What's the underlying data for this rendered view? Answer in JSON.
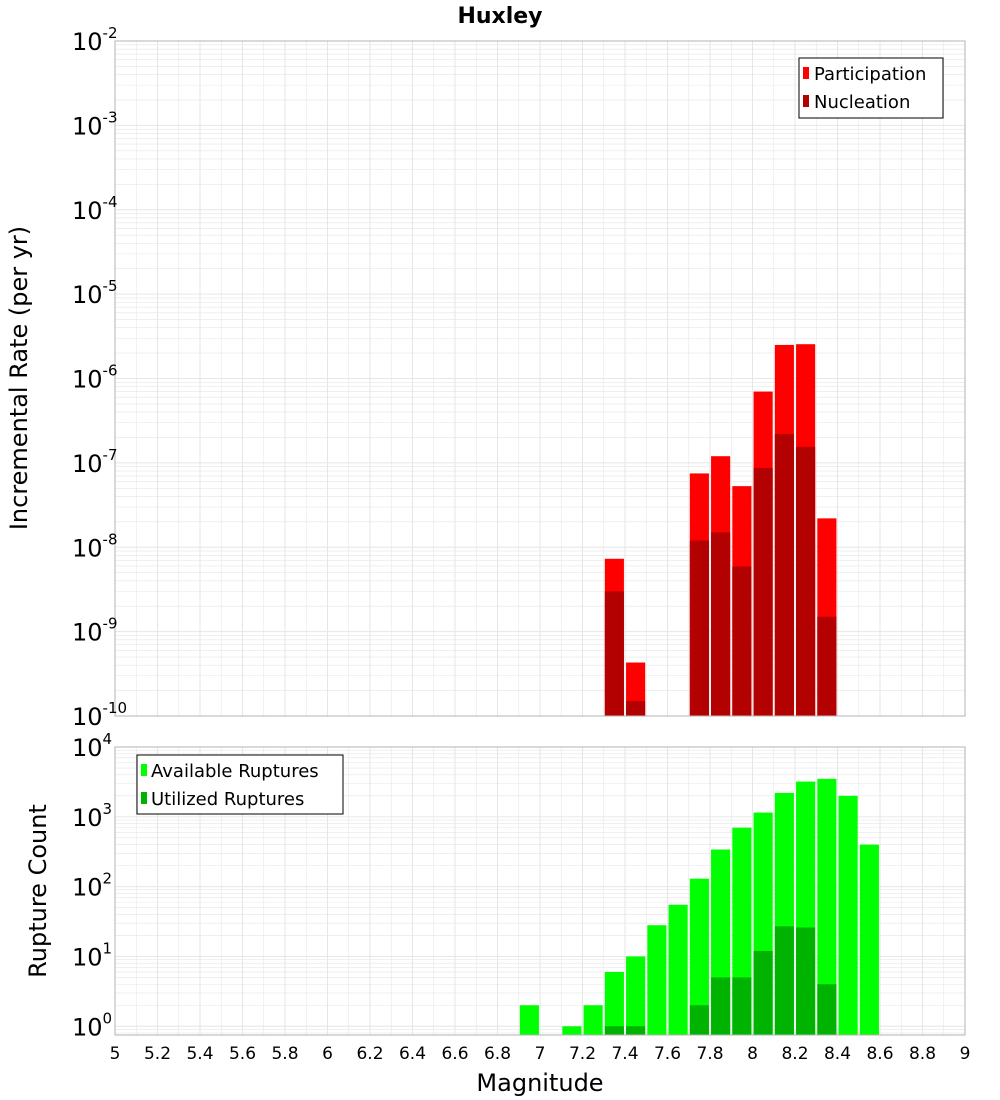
{
  "title": "Huxley",
  "xlabel": "Magnitude",
  "colors": {
    "participation": "#ff0000",
    "nucleation": "#b30000",
    "available": "#00ff00",
    "utilized": "#00b300",
    "grid": "#e6e6e6",
    "frame": "#b3b3b3"
  },
  "x_tick_labels": [
    "5",
    "5.2",
    "5.4",
    "5.6",
    "5.8",
    "6",
    "6.2",
    "6.4",
    "6.6",
    "6.8",
    "7",
    "7.2",
    "7.4",
    "7.6",
    "7.8",
    "8",
    "8.2",
    "8.4",
    "8.6",
    "8.8",
    "9"
  ],
  "chart_data": [
    {
      "type": "bar",
      "ylabel": "Incremental Rate (per yr)",
      "yscale": "log",
      "xlim": [
        5,
        9
      ],
      "ylim": [
        1e-10,
        0.01
      ],
      "y_tick_labels": [
        {
          "base": "10",
          "exp": "-2"
        },
        {
          "base": "10",
          "exp": "-3"
        },
        {
          "base": "10",
          "exp": "-4"
        },
        {
          "base": "10",
          "exp": "-5"
        },
        {
          "base": "10",
          "exp": "-6"
        },
        {
          "base": "10",
          "exp": "-7"
        },
        {
          "base": "10",
          "exp": "-8"
        },
        {
          "base": "10",
          "exp": "-9"
        },
        {
          "base": "10",
          "exp": "-10"
        }
      ],
      "legend_position": "top-right",
      "series": [
        {
          "name": "Participation",
          "x": [
            7.35,
            7.45,
            7.75,
            7.85,
            7.95,
            8.05,
            8.15,
            8.25,
            8.35
          ],
          "values": [
            7.3e-09,
            4.3e-10,
            7.5e-08,
            1.2e-07,
            5.3e-08,
            7e-07,
            2.5e-06,
            2.55e-06,
            2.2e-08
          ]
        },
        {
          "name": "Nucleation",
          "x": [
            7.35,
            7.45,
            7.75,
            7.85,
            7.95,
            8.05,
            8.15,
            8.25,
            8.35
          ],
          "values": [
            3e-09,
            1.5e-10,
            1.2e-08,
            1.5e-08,
            5.9e-09,
            8.7e-08,
            2.2e-07,
            1.55e-07,
            1.5e-09
          ]
        }
      ]
    },
    {
      "type": "bar",
      "ylabel": "Rupture Count",
      "yscale": "log",
      "xlim": [
        5,
        9
      ],
      "ylim": [
        0.75,
        10000
      ],
      "y_tick_labels": [
        {
          "base": "10",
          "exp": "4"
        },
        {
          "base": "10",
          "exp": "3"
        },
        {
          "base": "10",
          "exp": "2"
        },
        {
          "base": "10",
          "exp": "1"
        },
        {
          "base": "10",
          "exp": "0"
        }
      ],
      "legend_position": "top-left",
      "series": [
        {
          "name": "Available Ruptures",
          "x": [
            6.95,
            7.15,
            7.25,
            7.35,
            7.45,
            7.55,
            7.65,
            7.75,
            7.85,
            7.95,
            8.05,
            8.15,
            8.25,
            8.35,
            8.45,
            8.55
          ],
          "values": [
            2,
            1,
            2,
            6,
            10,
            28,
            55,
            130,
            340,
            700,
            1150,
            2200,
            3200,
            3500,
            2000,
            400
          ]
        },
        {
          "name": "Utilized Ruptures",
          "x": [
            7.35,
            7.45,
            7.75,
            7.85,
            7.95,
            8.05,
            8.15,
            8.25,
            8.35
          ],
          "values": [
            1,
            1,
            2,
            5,
            5,
            12,
            27,
            26,
            4
          ]
        }
      ]
    }
  ]
}
